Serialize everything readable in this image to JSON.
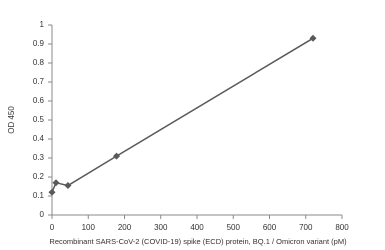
{
  "chart_data": {
    "type": "scatter",
    "x_label": "Recombinant SARS-CoV-2  (COVID-19) spike (ECD) protein, BQ.1 / Omicron variant (pM)",
    "y_label": "OD 450",
    "series": [
      {
        "color": "#595959",
        "x": [
          0,
          11,
          44,
          178,
          720
        ],
        "values": [
          0.12,
          0.17,
          0.155,
          0.31,
          0.93
        ]
      }
    ],
    "xlim": [
      0,
      800
    ],
    "xticks": [
      0,
      100,
      200,
      300,
      400,
      500,
      600,
      700,
      800
    ],
    "ylim": [
      0,
      1
    ],
    "yticks": [
      0,
      0.1,
      0.2,
      0.3,
      0.4,
      0.5,
      0.6,
      0.7,
      0.8,
      0.9,
      1
    ],
    "grid": false
  }
}
